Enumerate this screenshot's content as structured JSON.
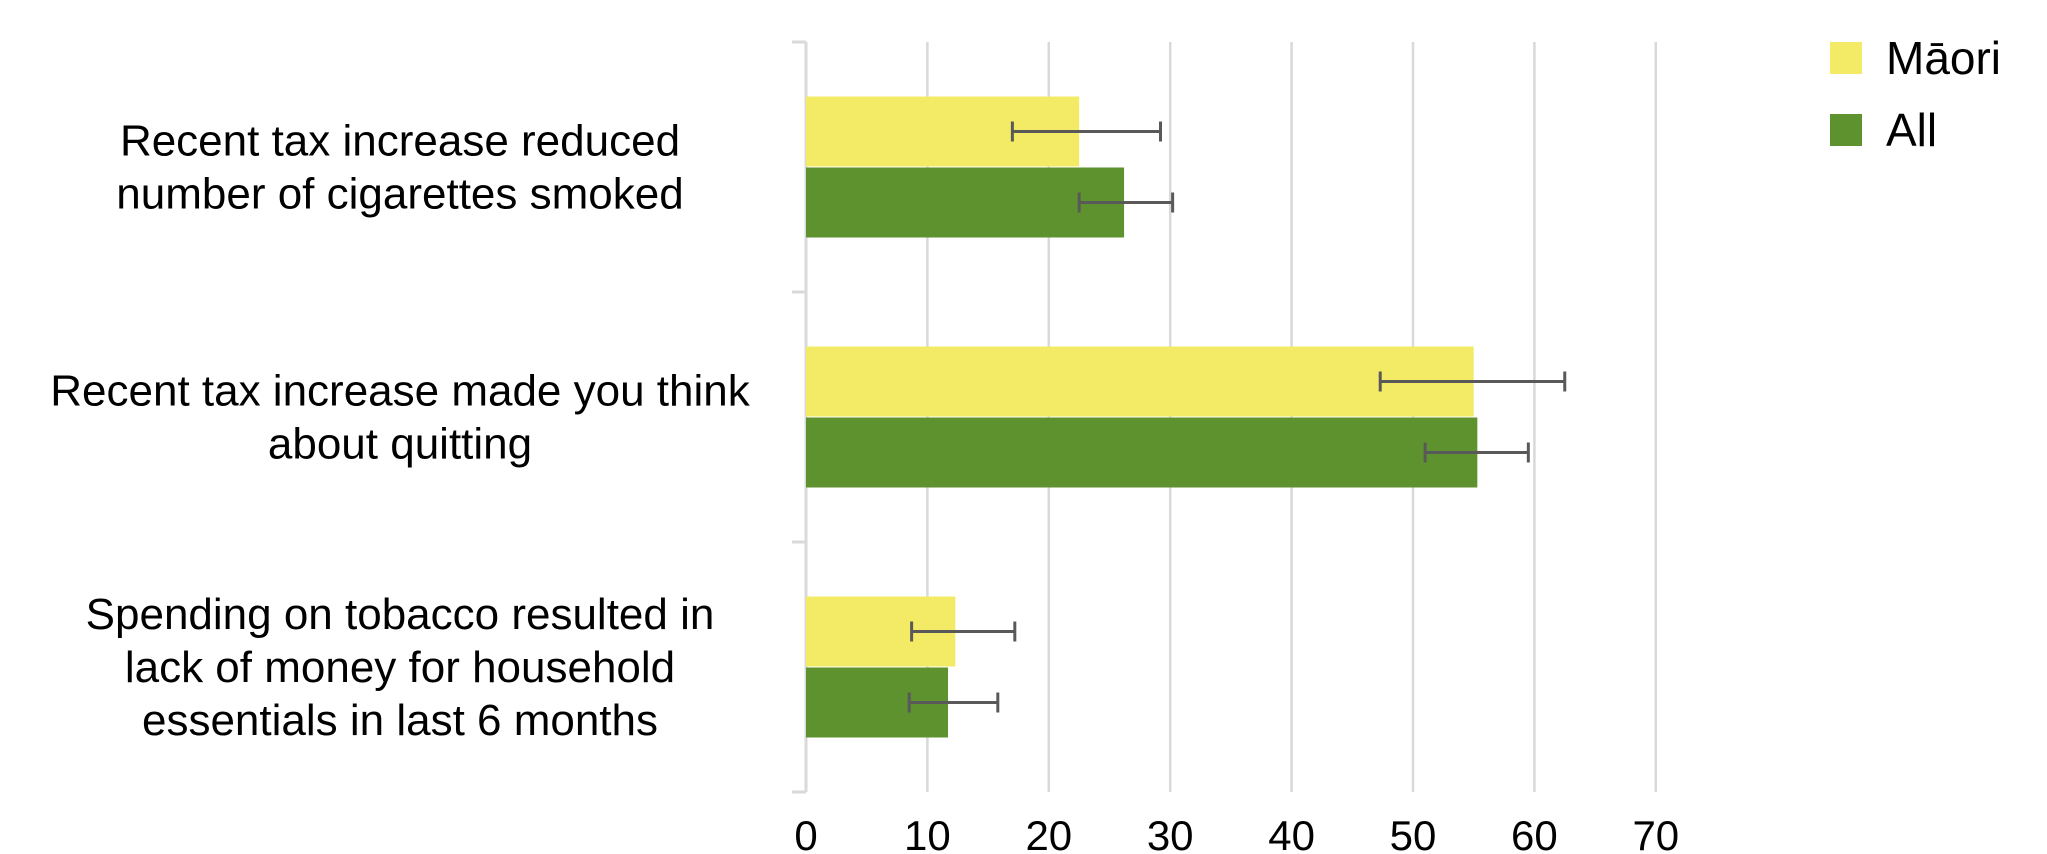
{
  "chart_data": {
    "type": "bar",
    "orientation": "horizontal",
    "title": "",
    "xlabel": "",
    "ylabel": "",
    "xlim": [
      0,
      70
    ],
    "xticks": [
      0,
      10,
      20,
      30,
      40,
      50,
      60,
      70
    ],
    "grid": true,
    "legend_position": "top-right",
    "categories": [
      {
        "lines": [
          "Recent tax increase reduced",
          "number of cigarettes smoked"
        ]
      },
      {
        "lines": [
          "Recent tax increase made you think",
          "about quitting"
        ]
      },
      {
        "lines": [
          "Spending on tobacco resulted in",
          "lack of money for household",
          "essentials in last 6 months"
        ]
      }
    ],
    "series": [
      {
        "name": "Māori",
        "color": "#f3eb66",
        "values": [
          22.5,
          55.0,
          12.3
        ],
        "error_low": [
          17.0,
          47.3,
          8.7
        ],
        "error_high": [
          29.2,
          62.5,
          17.2
        ]
      },
      {
        "name": "All",
        "color": "#5e922f",
        "values": [
          26.2,
          55.3,
          11.7
        ],
        "error_low": [
          22.5,
          51.0,
          8.5
        ],
        "error_high": [
          30.2,
          59.5,
          15.8
        ]
      }
    ]
  }
}
